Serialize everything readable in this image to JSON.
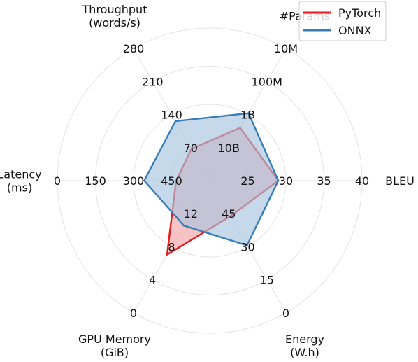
{
  "chart_data": {
    "type": "radar",
    "axes": [
      {
        "name": "bleu",
        "label_lines": [
          "BLEU"
        ],
        "ticks": [
          "25",
          "30",
          "35",
          "40"
        ]
      },
      {
        "name": "params",
        "label_lines": [
          "#Params"
        ],
        "ticks": [
          "10B",
          "1B",
          "100M",
          "10M"
        ]
      },
      {
        "name": "throughput",
        "label_lines": [
          "Throughput",
          "(words/s)"
        ],
        "ticks": [
          "70",
          "140",
          "210",
          "280"
        ]
      },
      {
        "name": "latency",
        "label_lines": [
          "Latency",
          "(ms)"
        ],
        "ticks": [
          "450",
          "300",
          "150",
          "0"
        ]
      },
      {
        "name": "gpu-memory",
        "label_lines": [
          "GPU Memory",
          "(GiB)"
        ],
        "ticks": [
          "12",
          "8",
          "4",
          "0"
        ]
      },
      {
        "name": "energy",
        "label_lines": [
          "Energy",
          "(W.h)"
        ],
        "ticks": [
          "45",
          "30",
          "15",
          "0"
        ]
      }
    ],
    "levels": 4,
    "grid": true,
    "legend_position": "top-right",
    "series": [
      {
        "name": "PyTorch",
        "color": "#e41a1c",
        "fill": "#f4a3a4",
        "values": [
          0.45,
          0.4,
          0.24,
          0.22,
          0.56,
          0.27
        ]
      },
      {
        "name": "ONNX",
        "color": "#377eb8",
        "fill": "#a7c4e0",
        "values": [
          0.45,
          0.51,
          0.45,
          0.43,
          0.34,
          0.49
        ]
      }
    ]
  }
}
